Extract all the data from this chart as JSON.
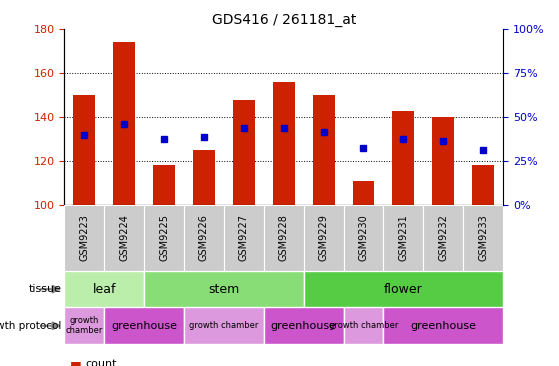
{
  "title": "GDS416 / 261181_at",
  "samples": [
    "GSM9223",
    "GSM9224",
    "GSM9225",
    "GSM9226",
    "GSM9227",
    "GSM9228",
    "GSM9229",
    "GSM9230",
    "GSM9231",
    "GSM9232",
    "GSM9233"
  ],
  "counts": [
    150,
    174,
    118,
    125,
    148,
    156,
    150,
    111,
    143,
    140,
    118
  ],
  "percentiles": [
    132,
    137,
    130,
    131,
    135,
    135,
    133,
    126,
    130,
    129,
    125
  ],
  "ylim": [
    100,
    180
  ],
  "yticks": [
    100,
    120,
    140,
    160,
    180
  ],
  "y2lim": [
    0,
    100
  ],
  "y2ticks": [
    0,
    25,
    50,
    75,
    100
  ],
  "bar_color": "#cc2200",
  "dot_color": "#0000cc",
  "tissue_groups": [
    {
      "label": "leaf",
      "start": 0,
      "end": 1,
      "color": "#bbeeaa"
    },
    {
      "label": "stem",
      "start": 2,
      "end": 5,
      "color": "#88dd77"
    },
    {
      "label": "flower",
      "start": 6,
      "end": 10,
      "color": "#55cc44"
    }
  ],
  "growth_groups": [
    {
      "label": "growth\nchamber",
      "start": 0,
      "end": 0,
      "color": "#dd99dd"
    },
    {
      "label": "greenhouse",
      "start": 1,
      "end": 2,
      "color": "#cc55cc"
    },
    {
      "label": "growth chamber",
      "start": 3,
      "end": 4,
      "color": "#dd99dd"
    },
    {
      "label": "greenhouse",
      "start": 5,
      "end": 6,
      "color": "#cc55cc"
    },
    {
      "label": "growth chamber",
      "start": 7,
      "end": 7,
      "color": "#dd99dd"
    },
    {
      "label": "greenhouse",
      "start": 8,
      "end": 10,
      "color": "#cc55cc"
    }
  ],
  "xtick_bg_color": "#cccccc",
  "legend_count_color": "#cc2200",
  "legend_dot_color": "#0000cc",
  "background_color": "#ffffff",
  "grid_color": "#000000",
  "tick_label_color_left": "#cc2200",
  "tick_label_color_right": "#0000cc"
}
